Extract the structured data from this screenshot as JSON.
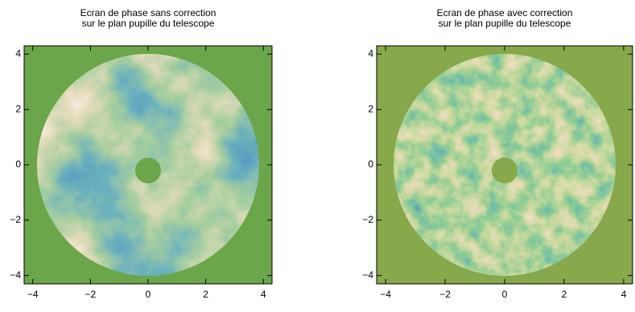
{
  "chart_data": [
    {
      "type": "image",
      "title": [
        "Ecran de phase sans correction",
        "sur le plan pupille du telescope"
      ],
      "xlim": [
        -4.3,
        4.3
      ],
      "ylim": [
        -4.3,
        4.3
      ],
      "xticks": [
        {
          "value": -4,
          "label": "−4"
        },
        {
          "value": -2,
          "label": "−2"
        },
        0,
        2,
        4
      ],
      "yticks": [
        {
          "value": -4,
          "label": "−4"
        },
        {
          "value": -2,
          "label": "−2"
        },
        0,
        2,
        4
      ]
    },
    {
      "type": "image",
      "title": [
        "Ecran de phase avec correction",
        "sur le plan pupille du telescope"
      ],
      "xlim": [
        -4.3,
        4.3
      ],
      "ylim": [
        -4.3,
        4.3
      ],
      "xticks": [
        {
          "value": -4,
          "label": "−4"
        },
        {
          "value": -2,
          "label": "−2"
        },
        0,
        2,
        4
      ],
      "yticks": [
        {
          "value": -4,
          "label": "−4"
        },
        {
          "value": -2,
          "label": "−2"
        },
        0,
        2,
        4
      ]
    }
  ]
}
